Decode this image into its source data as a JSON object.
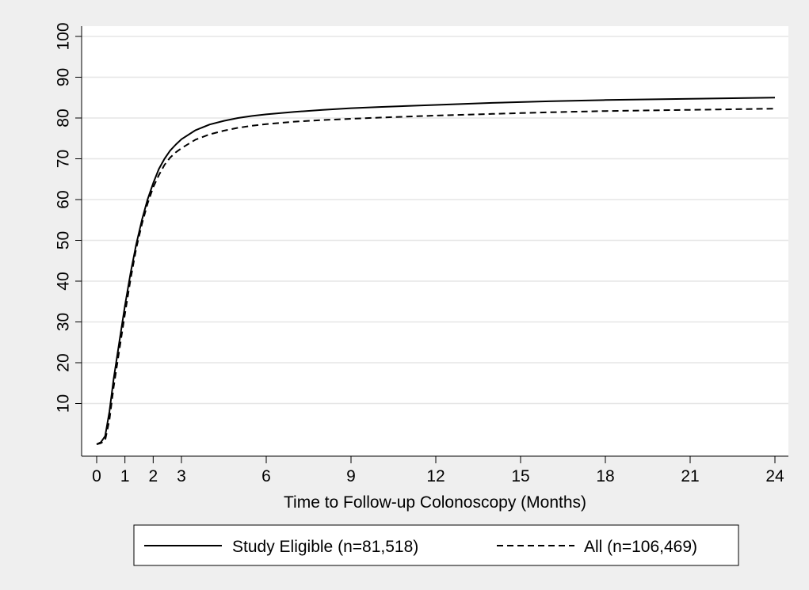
{
  "chart_data": {
    "type": "line",
    "title": "",
    "xlabel": "Time to Follow-up Colonoscopy (Months)",
    "ylabel": "",
    "xlim": [
      0,
      24
    ],
    "ylim": [
      0,
      100
    ],
    "x_ticks": [
      0,
      1,
      2,
      3,
      6,
      9,
      12,
      15,
      18,
      21,
      24
    ],
    "y_ticks": [
      10,
      20,
      30,
      40,
      50,
      60,
      70,
      80,
      90,
      100
    ],
    "grid": "horizontal",
    "legend_position": "bottom",
    "series": [
      {
        "name": "Study Eligible (n=81,518)",
        "line_style": "solid",
        "points": [
          [
            0,
            0
          ],
          [
            0.15,
            0.5
          ],
          [
            0.3,
            2
          ],
          [
            0.45,
            8
          ],
          [
            0.6,
            16
          ],
          [
            0.8,
            25
          ],
          [
            1.0,
            34
          ],
          [
            1.2,
            42
          ],
          [
            1.4,
            49
          ],
          [
            1.6,
            55
          ],
          [
            1.8,
            60
          ],
          [
            2.0,
            64
          ],
          [
            2.2,
            67.5
          ],
          [
            2.4,
            70
          ],
          [
            2.6,
            72
          ],
          [
            2.8,
            73.5
          ],
          [
            3.0,
            74.8
          ],
          [
            3.5,
            77
          ],
          [
            4.0,
            78.4
          ],
          [
            4.5,
            79.3
          ],
          [
            5.0,
            80
          ],
          [
            5.5,
            80.5
          ],
          [
            6.0,
            80.9
          ],
          [
            7.0,
            81.5
          ],
          [
            8.0,
            82
          ],
          [
            9.0,
            82.4
          ],
          [
            10.0,
            82.7
          ],
          [
            12.0,
            83.2
          ],
          [
            14.0,
            83.7
          ],
          [
            15.0,
            83.9
          ],
          [
            16.0,
            84.1
          ],
          [
            18.0,
            84.4
          ],
          [
            20.0,
            84.6
          ],
          [
            21.0,
            84.7
          ],
          [
            22.0,
            84.8
          ],
          [
            24.0,
            85
          ]
        ]
      },
      {
        "name": "All (n=106,469)",
        "line_style": "dashed",
        "points": [
          [
            0,
            0
          ],
          [
            0.15,
            0.3
          ],
          [
            0.3,
            1
          ],
          [
            0.45,
            6
          ],
          [
            0.6,
            14
          ],
          [
            0.8,
            23
          ],
          [
            1.0,
            32
          ],
          [
            1.2,
            40.5
          ],
          [
            1.4,
            48
          ],
          [
            1.6,
            54
          ],
          [
            1.8,
            59
          ],
          [
            2.0,
            63
          ],
          [
            2.2,
            66
          ],
          [
            2.4,
            68.5
          ],
          [
            2.6,
            70.3
          ],
          [
            2.8,
            71.6
          ],
          [
            3.0,
            72.6
          ],
          [
            3.5,
            74.7
          ],
          [
            4.0,
            76
          ],
          [
            4.5,
            76.9
          ],
          [
            5.0,
            77.6
          ],
          [
            5.5,
            78.1
          ],
          [
            6.0,
            78.5
          ],
          [
            7.0,
            79.1
          ],
          [
            8.0,
            79.5
          ],
          [
            9.0,
            79.8
          ],
          [
            10.0,
            80.1
          ],
          [
            12.0,
            80.6
          ],
          [
            14.0,
            81
          ],
          [
            15.0,
            81.2
          ],
          [
            16.0,
            81.4
          ],
          [
            18.0,
            81.7
          ],
          [
            20.0,
            81.9
          ],
          [
            21.0,
            82
          ],
          [
            22.0,
            82.1
          ],
          [
            24.0,
            82.3
          ]
        ]
      }
    ]
  },
  "colors": {
    "background": "#efefef",
    "plot_area": "#ffffff",
    "grid": "#e6e6e6",
    "line": "#000000"
  }
}
